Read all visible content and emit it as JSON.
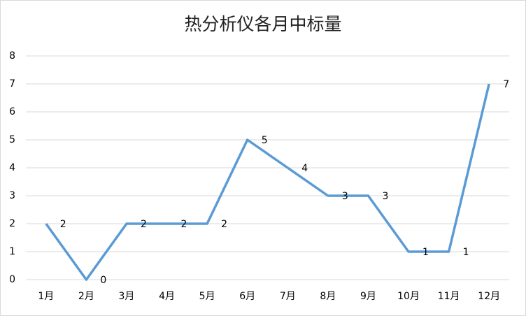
{
  "chart_data": {
    "type": "line",
    "title": "热分析仪各月中标量",
    "categories": [
      "1月",
      "2月",
      "3月",
      "4月",
      "5月",
      "6月",
      "7月",
      "8月",
      "9月",
      "10月",
      "11月",
      "12月"
    ],
    "values": [
      2,
      0,
      2,
      2,
      2,
      5,
      4,
      3,
      3,
      1,
      1,
      7
    ],
    "color": "#5b9bd5",
    "ylim": [
      0,
      8
    ],
    "yticks": [
      0,
      1,
      2,
      3,
      4,
      5,
      6,
      7,
      8
    ],
    "grid": true
  }
}
